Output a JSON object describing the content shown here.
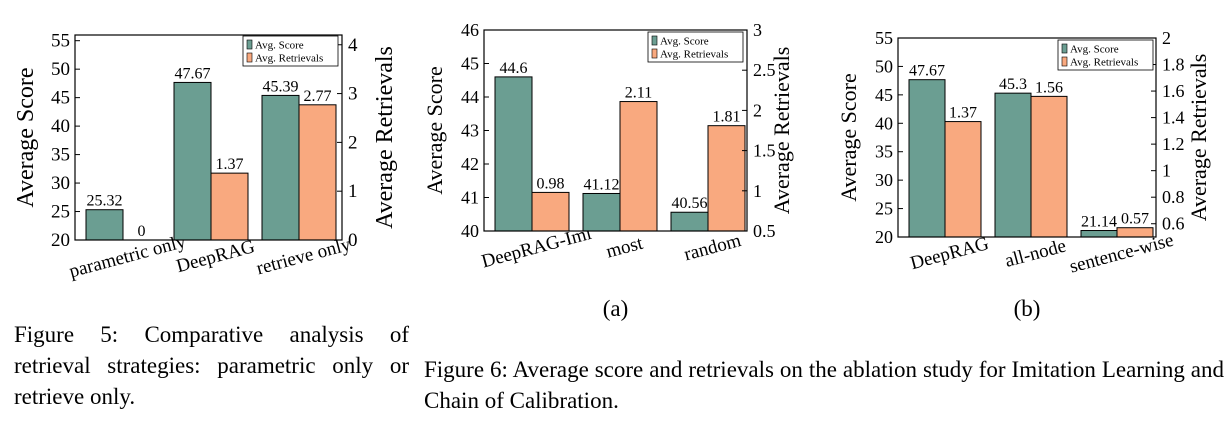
{
  "colors": {
    "score": "#6b9e92",
    "retrievals": "#f9a97f",
    "edge": "#000000"
  },
  "chart_data": [
    {
      "type": "bar",
      "series": [
        {
          "name": "Avg. Score",
          "axis": "left",
          "values": [
            25.32,
            47.67,
            45.39
          ],
          "labels": [
            "25.32",
            "47.67",
            "45.39"
          ]
        },
        {
          "name": "Avg. Retrievals",
          "axis": "right",
          "values": [
            0,
            1.37,
            2.77
          ],
          "labels": [
            "0",
            "1.37",
            "2.77"
          ]
        }
      ],
      "categories": [
        "parametric only",
        "DeepRAG",
        "retrieve only"
      ],
      "ylabel": "Average Score",
      "y2label": "Average Retrievals",
      "ylim": [
        20,
        56
      ],
      "y2lim": [
        0,
        4.2
      ],
      "yticks": [
        "20",
        "25",
        "30",
        "35",
        "40",
        "45",
        "50",
        "55"
      ],
      "y2ticks": [
        "0",
        "1",
        "2",
        "3",
        "4"
      ],
      "legend": "top-right",
      "panel_label": ""
    },
    {
      "type": "bar",
      "series": [
        {
          "name": "Avg. Score",
          "axis": "left",
          "values": [
            44.6,
            41.12,
            40.56
          ],
          "labels": [
            "44.6",
            "41.12",
            "40.56"
          ]
        },
        {
          "name": "Avg. Retrievals",
          "axis": "right",
          "values": [
            0.98,
            2.11,
            1.81
          ],
          "labels": [
            "0.98",
            "2.11",
            "1.81"
          ]
        }
      ],
      "categories": [
        "DeepRAG-Imi",
        "most",
        "random"
      ],
      "ylabel": "Average Score",
      "y2label": "Average Retrievals",
      "ylim": [
        40,
        46
      ],
      "y2lim": [
        0.5,
        3
      ],
      "yticks": [
        "40",
        "41",
        "42",
        "43",
        "44",
        "45",
        "46"
      ],
      "y2ticks": [
        "0.5",
        "1",
        "1.5",
        "2",
        "2.5",
        "3"
      ],
      "legend": "top-right",
      "panel_label": "(a)"
    },
    {
      "type": "bar",
      "series": [
        {
          "name": "Avg. Score",
          "axis": "left",
          "values": [
            47.67,
            45.3,
            21.14
          ],
          "labels": [
            "47.67",
            "45.3",
            "21.14"
          ]
        },
        {
          "name": "Avg. Retrievals",
          "axis": "right",
          "values": [
            1.37,
            1.56,
            0.57
          ],
          "labels": [
            "1.37",
            "1.56",
            "0.57"
          ]
        }
      ],
      "categories": [
        "DeepRAG",
        "all-node",
        "sentence-wise"
      ],
      "ylabel": "Average Score",
      "y2label": "Average Retrievals",
      "ylim": [
        20,
        55
      ],
      "y2lim": [
        0.5,
        2
      ],
      "yticks": [
        "20",
        "25",
        "30",
        "35",
        "40",
        "45",
        "50",
        "55"
      ],
      "y2ticks": [
        "0.6",
        "0.8",
        "1",
        "1.2",
        "1.4",
        "1.6",
        "1.8",
        "2"
      ],
      "legend": "top-right",
      "panel_label": "(b)"
    }
  ],
  "captions": {
    "fig5": "Figure 5: Comparative analysis of retrieval strategies: parametric only or retrieve only.",
    "fig6": "Figure 6: Average score and retrievals on the ablation study for Imitation Learning and Chain of Calibration."
  }
}
